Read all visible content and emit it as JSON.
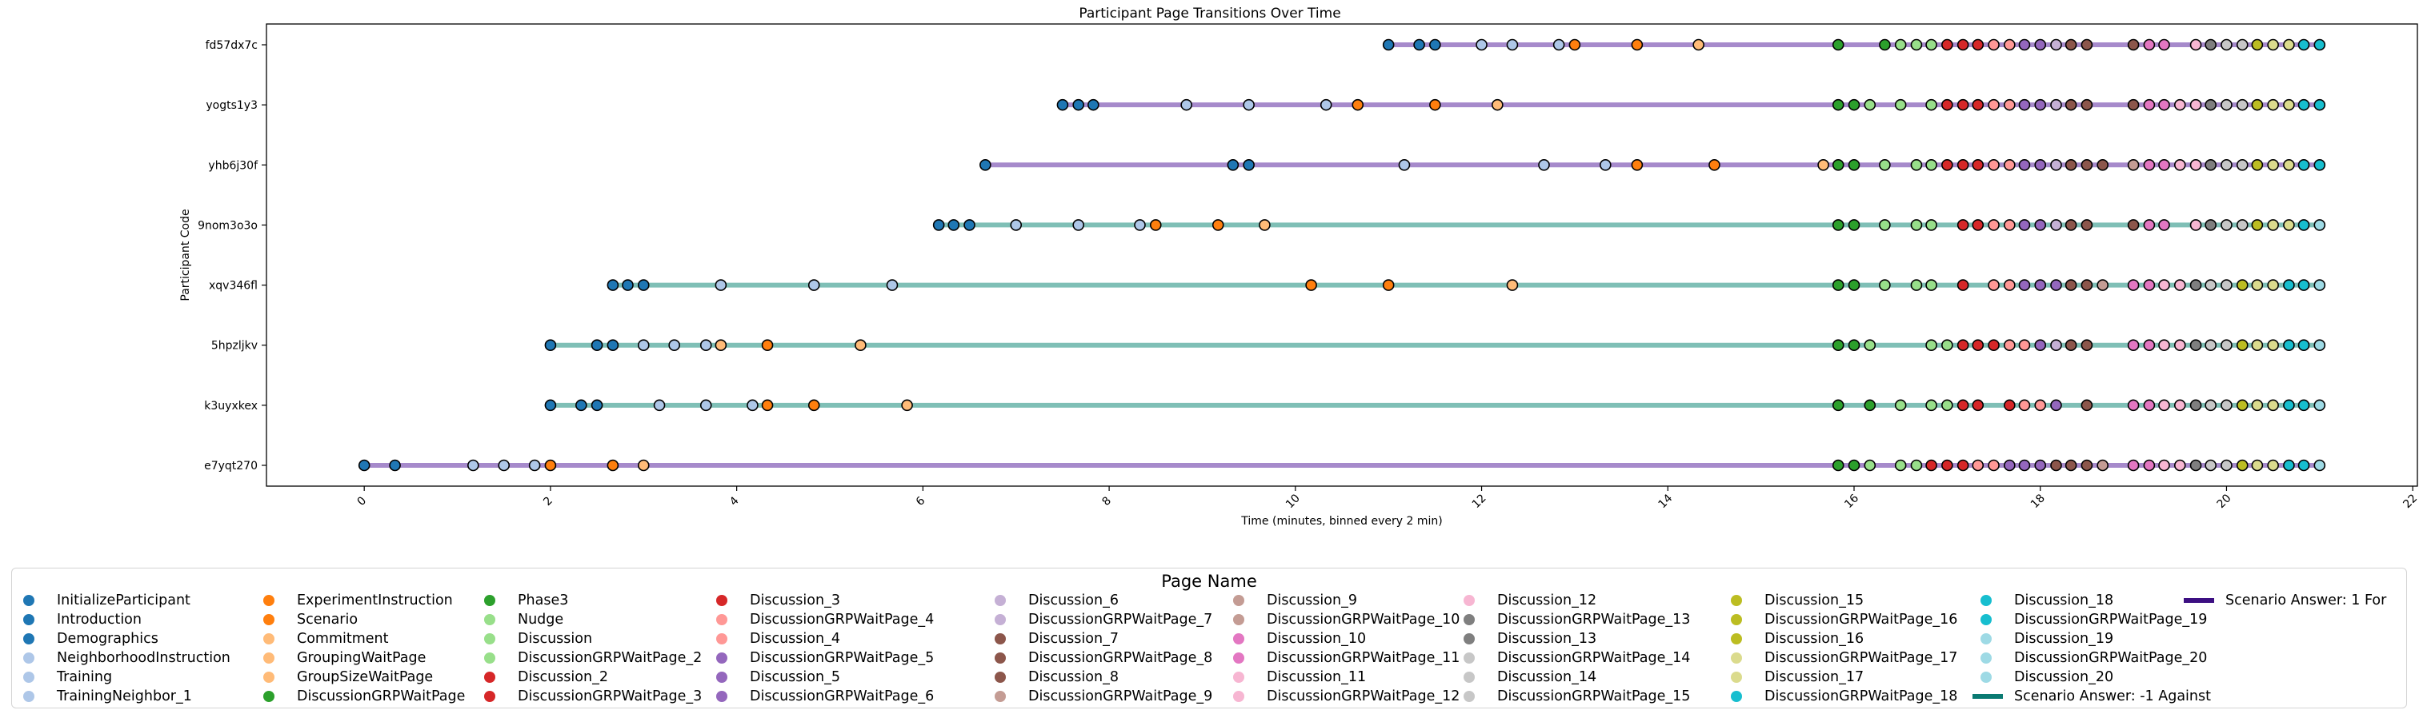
{
  "chart_data": {
    "type": "scatter",
    "title": "Participant Page Transitions Over Time",
    "xlabel": "Time (minutes, binned every 2 min)",
    "ylabel": "Participant Code",
    "xlim": [
      -1.05,
      22.05
    ],
    "xticks": [
      0,
      2,
      4,
      6,
      8,
      10,
      12,
      14,
      16,
      18,
      20,
      22
    ],
    "xtick_labels": [
      "0",
      "2",
      "4",
      "6",
      "8",
      "10",
      "12",
      "14",
      "16",
      "18",
      "20",
      "22"
    ],
    "grid": false,
    "legend_title": "Page Name",
    "legend_placement": "below",
    "pages": [
      {
        "name": "InitializeParticipant",
        "color": "#1f77b4"
      },
      {
        "name": "Introduction",
        "color": "#1f77b4"
      },
      {
        "name": "Demographics",
        "color": "#1f77b4"
      },
      {
        "name": "NeighborhoodInstruction",
        "color": "#aec7e8"
      },
      {
        "name": "Training",
        "color": "#aec7e8"
      },
      {
        "name": "TrainingNeighbor_1",
        "color": "#aec7e8"
      },
      {
        "name": "ExperimentInstruction",
        "color": "#ff7f0e"
      },
      {
        "name": "Scenario",
        "color": "#ff7f0e"
      },
      {
        "name": "Commitment",
        "color": "#ffbb78"
      },
      {
        "name": "GroupingWaitPage",
        "color": "#ffbb78"
      },
      {
        "name": "GroupSizeWaitPage",
        "color": "#ffbb78"
      },
      {
        "name": "DiscussionGRPWaitPage",
        "color": "#2ca02c"
      },
      {
        "name": "Phase3",
        "color": "#2ca02c"
      },
      {
        "name": "Nudge",
        "color": "#98df8a"
      },
      {
        "name": "Discussion",
        "color": "#98df8a"
      },
      {
        "name": "DiscussionGRPWaitPage_2",
        "color": "#98df8a"
      },
      {
        "name": "Discussion_2",
        "color": "#d62728"
      },
      {
        "name": "DiscussionGRPWaitPage_3",
        "color": "#d62728"
      },
      {
        "name": "Discussion_3",
        "color": "#d62728"
      },
      {
        "name": "DiscussionGRPWaitPage_4",
        "color": "#ff9896"
      },
      {
        "name": "Discussion_4",
        "color": "#ff9896"
      },
      {
        "name": "DiscussionGRPWaitPage_5",
        "color": "#9467bd"
      },
      {
        "name": "Discussion_5",
        "color": "#9467bd"
      },
      {
        "name": "DiscussionGRPWaitPage_6",
        "color": "#9467bd"
      },
      {
        "name": "Discussion_6",
        "color": "#c5b0d5"
      },
      {
        "name": "DiscussionGRPWaitPage_7",
        "color": "#c5b0d5"
      },
      {
        "name": "Discussion_7",
        "color": "#8c564b"
      },
      {
        "name": "DiscussionGRPWaitPage_8",
        "color": "#8c564b"
      },
      {
        "name": "Discussion_8",
        "color": "#8c564b"
      },
      {
        "name": "DiscussionGRPWaitPage_9",
        "color": "#c49c94"
      },
      {
        "name": "Discussion_9",
        "color": "#c49c94"
      },
      {
        "name": "DiscussionGRPWaitPage_10",
        "color": "#c49c94"
      },
      {
        "name": "Discussion_10",
        "color": "#e377c2"
      },
      {
        "name": "DiscussionGRPWaitPage_11",
        "color": "#e377c2"
      },
      {
        "name": "Discussion_11",
        "color": "#f7b6d2"
      },
      {
        "name": "DiscussionGRPWaitPage_12",
        "color": "#f7b6d2"
      },
      {
        "name": "Discussion_12",
        "color": "#f7b6d2"
      },
      {
        "name": "DiscussionGRPWaitPage_13",
        "color": "#7f7f7f"
      },
      {
        "name": "Discussion_13",
        "color": "#7f7f7f"
      },
      {
        "name": "DiscussionGRPWaitPage_14",
        "color": "#c7c7c7"
      },
      {
        "name": "Discussion_14",
        "color": "#c7c7c7"
      },
      {
        "name": "DiscussionGRPWaitPage_15",
        "color": "#c7c7c7"
      },
      {
        "name": "Discussion_15",
        "color": "#bcbd22"
      },
      {
        "name": "DiscussionGRPWaitPage_16",
        "color": "#bcbd22"
      },
      {
        "name": "Discussion_16",
        "color": "#bcbd22"
      },
      {
        "name": "DiscussionGRPWaitPage_17",
        "color": "#dbdb8d"
      },
      {
        "name": "Discussion_17",
        "color": "#dbdb8d"
      },
      {
        "name": "DiscussionGRPWaitPage_18",
        "color": "#17becf"
      },
      {
        "name": "Discussion_18",
        "color": "#17becf"
      },
      {
        "name": "DiscussionGRPWaitPage_19",
        "color": "#17becf"
      },
      {
        "name": "Discussion_19",
        "color": "#9edae5"
      },
      {
        "name": "DiscussionGRPWaitPage_20",
        "color": "#9edae5"
      },
      {
        "name": "Discussion_20",
        "color": "#9edae5"
      }
    ],
    "answer_lines": [
      {
        "label": "Scenario Answer: -1 Against",
        "color": "#0a7a72"
      },
      {
        "label": "Scenario Answer: 1 For",
        "color": "#3c0f82"
      }
    ],
    "participants": [
      {
        "code": "e7yqt270",
        "answer": 1,
        "times": [
          0,
          0.33,
          1.17,
          1.5,
          1.83,
          2.0,
          2.67,
          3.0,
          15.83,
          16.0,
          16.17,
          16.5,
          16.67,
          16.83,
          17.0,
          17.17,
          17.33,
          17.5,
          17.67,
          17.83,
          18.0,
          18.17,
          18.33,
          18.5,
          18.67,
          19.0,
          19.17,
          19.33,
          19.5,
          19.67,
          19.83,
          20.0,
          20.17,
          20.33,
          20.5,
          20.67,
          20.83,
          21.0
        ],
        "pages": [
          "InitializeParticipant",
          "Introduction",
          "NeighborhoodInstruction",
          "Training",
          "TrainingNeighbor_1",
          "ExperimentInstruction",
          "Scenario",
          "Commitment",
          "DiscussionGRPWaitPage",
          "Phase3",
          "Nudge",
          "Discussion",
          "DiscussionGRPWaitPage_2",
          "Discussion_2",
          "DiscussionGRPWaitPage_3",
          "Discussion_3",
          "DiscussionGRPWaitPage_4",
          "Discussion_4",
          "DiscussionGRPWaitPage_5",
          "Discussion_5",
          "DiscussionGRPWaitPage_6",
          "Discussion_7",
          "DiscussionGRPWaitPage_8",
          "Discussion_8",
          "Discussion_9",
          "Discussion_10",
          "DiscussionGRPWaitPage_11",
          "Discussion_11",
          "DiscussionGRPWaitPage_12",
          "DiscussionGRPWaitPage_13",
          "Discussion_14",
          "DiscussionGRPWaitPage_15",
          "Discussion_15",
          "DiscussionGRPWaitPage_17",
          "Discussion_17",
          "DiscussionGRPWaitPage_18",
          "Discussion_18",
          "Discussion_20"
        ]
      },
      {
        "code": "k3uyxkex",
        "answer": -1,
        "times": [
          2.0,
          2.33,
          2.5,
          3.17,
          3.67,
          4.17,
          4.33,
          4.83,
          5.83,
          15.83,
          16.17,
          16.5,
          16.83,
          17.0,
          17.17,
          17.33,
          17.67,
          17.83,
          18.0,
          18.17,
          18.5,
          19.0,
          19.17,
          19.33,
          19.5,
          19.67,
          19.83,
          20.0,
          20.17,
          20.33,
          20.5,
          20.67,
          20.83,
          21.0
        ],
        "pages": [
          "InitializeParticipant",
          "Introduction",
          "Demographics",
          "NeighborhoodInstruction",
          "Training",
          "TrainingNeighbor_1",
          "ExperimentInstruction",
          "Scenario",
          "Commitment",
          "DiscussionGRPWaitPage",
          "Phase3",
          "Nudge",
          "Discussion",
          "DiscussionGRPWaitPage_2",
          "Discussion_2",
          "DiscussionGRPWaitPage_3",
          "Discussion_3",
          "DiscussionGRPWaitPage_4",
          "Discussion_4",
          "DiscussionGRPWaitPage_5",
          "Discussion_7",
          "Discussion_10",
          "DiscussionGRPWaitPage_11",
          "Discussion_11",
          "DiscussionGRPWaitPage_12",
          "DiscussionGRPWaitPage_13",
          "Discussion_14",
          "DiscussionGRPWaitPage_15",
          "Discussion_15",
          "DiscussionGRPWaitPage_17",
          "Discussion_17",
          "DiscussionGRPWaitPage_18",
          "Discussion_18",
          "Discussion_20"
        ]
      },
      {
        "code": "5hpzljkv",
        "answer": -1,
        "times": [
          2.0,
          2.5,
          2.67,
          3.0,
          3.33,
          3.67,
          3.83,
          4.33,
          5.33,
          15.83,
          16.0,
          16.17,
          16.83,
          17.0,
          17.17,
          17.33,
          17.5,
          17.67,
          17.83,
          18.0,
          18.17,
          18.33,
          18.5,
          19.0,
          19.17,
          19.33,
          19.5,
          19.67,
          19.83,
          20.0,
          20.17,
          20.33,
          20.5,
          20.67,
          20.83,
          21.0
        ],
        "pages": [
          "InitializeParticipant",
          "Introduction",
          "Demographics",
          "NeighborhoodInstruction",
          "Training",
          "TrainingNeighbor_1",
          "Commitment",
          "ExperimentInstruction",
          "GroupingWaitPage",
          "DiscussionGRPWaitPage",
          "Phase3",
          "Nudge",
          "Discussion",
          "DiscussionGRPWaitPage_2",
          "Discussion_2",
          "DiscussionGRPWaitPage_3",
          "Discussion_3",
          "DiscussionGRPWaitPage_4",
          "Discussion_4",
          "DiscussionGRPWaitPage_5",
          "Discussion_6",
          "Discussion_7",
          "Discussion_8",
          "Discussion_10",
          "DiscussionGRPWaitPage_11",
          "Discussion_11",
          "DiscussionGRPWaitPage_12",
          "DiscussionGRPWaitPage_13",
          "Discussion_14",
          "DiscussionGRPWaitPage_15",
          "Discussion_15",
          "DiscussionGRPWaitPage_17",
          "Discussion_17",
          "DiscussionGRPWaitPage_18",
          "Discussion_18",
          "Discussion_20"
        ]
      },
      {
        "code": "xqv346fl",
        "answer": -1,
        "times": [
          2.67,
          2.83,
          3.0,
          3.83,
          4.83,
          5.67,
          10.17,
          11.0,
          12.33,
          15.83,
          16.0,
          16.33,
          16.67,
          16.83,
          17.17,
          17.5,
          17.67,
          17.83,
          18.0,
          18.17,
          18.33,
          18.5,
          18.67,
          19.0,
          19.17,
          19.33,
          19.5,
          19.67,
          19.83,
          20.0,
          20.17,
          20.33,
          20.5,
          20.67,
          20.83,
          21.0
        ],
        "pages": [
          "InitializeParticipant",
          "Introduction",
          "Demographics",
          "NeighborhoodInstruction",
          "Training",
          "TrainingNeighbor_1",
          "ExperimentInstruction",
          "Scenario",
          "Commitment",
          "DiscussionGRPWaitPage",
          "Phase3",
          "Nudge",
          "Discussion",
          "DiscussionGRPWaitPage_2",
          "Discussion_2",
          "DiscussionGRPWaitPage_4",
          "Discussion_4",
          "DiscussionGRPWaitPage_5",
          "Discussion_5",
          "DiscussionGRPWaitPage_6",
          "Discussion_7",
          "DiscussionGRPWaitPage_8",
          "Discussion_9",
          "Discussion_10",
          "DiscussionGRPWaitPage_11",
          "Discussion_11",
          "DiscussionGRPWaitPage_12",
          "DiscussionGRPWaitPage_13",
          "Discussion_14",
          "DiscussionGRPWaitPage_15",
          "Discussion_15",
          "DiscussionGRPWaitPage_17",
          "Discussion_17",
          "DiscussionGRPWaitPage_18",
          "Discussion_18",
          "Discussion_20"
        ]
      },
      {
        "code": "9nom3o3o",
        "answer": -1,
        "times": [
          6.17,
          6.33,
          6.5,
          7.0,
          7.67,
          8.33,
          8.5,
          9.17,
          9.67,
          15.83,
          16.0,
          16.33,
          16.67,
          16.83,
          17.17,
          17.33,
          17.5,
          17.67,
          17.83,
          18.0,
          18.17,
          18.33,
          18.5,
          19.0,
          19.17,
          19.33,
          19.67,
          19.83,
          20.0,
          20.17,
          20.33,
          20.5,
          20.67,
          20.83,
          21.0
        ],
        "pages": [
          "InitializeParticipant",
          "Introduction",
          "Demographics",
          "NeighborhoodInstruction",
          "Training",
          "TrainingNeighbor_1",
          "ExperimentInstruction",
          "Scenario",
          "Commitment",
          "DiscussionGRPWaitPage",
          "Phase3",
          "Nudge",
          "Discussion",
          "DiscussionGRPWaitPage_2",
          "DiscussionGRPWaitPage_3",
          "Discussion_3",
          "DiscussionGRPWaitPage_4",
          "Discussion_4",
          "DiscussionGRPWaitPage_5",
          "Discussion_5",
          "Discussion_6",
          "Discussion_7",
          "DiscussionGRPWaitPage_8",
          "Discussion_8",
          "Discussion_10",
          "DiscussionGRPWaitPage_11",
          "Discussion_11",
          "DiscussionGRPWaitPage_13",
          "Discussion_14",
          "DiscussionGRPWaitPage_15",
          "Discussion_15",
          "DiscussionGRPWaitPage_17",
          "Discussion_17",
          "DiscussionGRPWaitPage_18",
          "Discussion_20"
        ]
      },
      {
        "code": "yhb6j30f",
        "answer": 1,
        "times": [
          6.67,
          9.33,
          9.5,
          11.17,
          12.67,
          13.33,
          13.67,
          14.5,
          15.67,
          15.83,
          16.0,
          16.33,
          16.67,
          16.83,
          17.0,
          17.17,
          17.33,
          17.5,
          17.67,
          17.83,
          18.0,
          18.17,
          18.33,
          18.5,
          18.67,
          19.0,
          19.17,
          19.33,
          19.5,
          19.67,
          19.83,
          20.0,
          20.17,
          20.33,
          20.5,
          20.67,
          20.83,
          21.0
        ],
        "pages": [
          "InitializeParticipant",
          "Introduction",
          "Demographics",
          "NeighborhoodInstruction",
          "Training",
          "TrainingNeighbor_1",
          "ExperimentInstruction",
          "Scenario",
          "Commitment",
          "DiscussionGRPWaitPage",
          "Phase3",
          "Nudge",
          "Discussion",
          "DiscussionGRPWaitPage_2",
          "Discussion_2",
          "DiscussionGRPWaitPage_3",
          "Discussion_3",
          "DiscussionGRPWaitPage_4",
          "Discussion_4",
          "DiscussionGRPWaitPage_5",
          "Discussion_5",
          "Discussion_6",
          "Discussion_7",
          "DiscussionGRPWaitPage_8",
          "Discussion_8",
          "Discussion_9",
          "Discussion_10",
          "DiscussionGRPWaitPage_11",
          "Discussion_11",
          "DiscussionGRPWaitPage_12",
          "DiscussionGRPWaitPage_13",
          "Discussion_14",
          "DiscussionGRPWaitPage_15",
          "Discussion_15",
          "DiscussionGRPWaitPage_17",
          "Discussion_17",
          "DiscussionGRPWaitPage_18",
          "Discussion_18"
        ]
      },
      {
        "code": "yogts1y3",
        "answer": 1,
        "times": [
          7.5,
          7.67,
          7.83,
          8.83,
          9.5,
          10.33,
          10.67,
          11.5,
          12.17,
          15.83,
          16.0,
          16.17,
          16.5,
          16.83,
          17.0,
          17.17,
          17.33,
          17.5,
          17.67,
          17.83,
          18.0,
          18.17,
          18.33,
          18.5,
          19.0,
          19.17,
          19.33,
          19.5,
          19.67,
          19.83,
          20.0,
          20.17,
          20.33,
          20.5,
          20.67,
          20.83,
          21.0
        ],
        "pages": [
          "InitializeParticipant",
          "Introduction",
          "Demographics",
          "NeighborhoodInstruction",
          "Training",
          "TrainingNeighbor_1",
          "ExperimentInstruction",
          "Scenario",
          "Commitment",
          "DiscussionGRPWaitPage",
          "Phase3",
          "Nudge",
          "Discussion",
          "DiscussionGRPWaitPage_2",
          "Discussion_2",
          "DiscussionGRPWaitPage_3",
          "Discussion_3",
          "DiscussionGRPWaitPage_4",
          "Discussion_4",
          "DiscussionGRPWaitPage_5",
          "Discussion_5",
          "Discussion_6",
          "Discussion_7",
          "DiscussionGRPWaitPage_8",
          "Discussion_8",
          "Discussion_10",
          "DiscussionGRPWaitPage_11",
          "Discussion_11",
          "DiscussionGRPWaitPage_12",
          "DiscussionGRPWaitPage_13",
          "Discussion_14",
          "DiscussionGRPWaitPage_15",
          "Discussion_15",
          "DiscussionGRPWaitPage_17",
          "Discussion_17",
          "DiscussionGRPWaitPage_18",
          "Discussion_18"
        ]
      },
      {
        "code": "fd57dx7c",
        "answer": 1,
        "times": [
          11.0,
          11.33,
          11.5,
          12.0,
          12.33,
          12.83,
          13.0,
          13.67,
          14.33,
          15.83,
          16.33,
          16.5,
          16.67,
          16.83,
          17.0,
          17.17,
          17.33,
          17.5,
          17.67,
          17.83,
          18.0,
          18.17,
          18.33,
          18.5,
          19.0,
          19.17,
          19.33,
          19.67,
          19.83,
          20.0,
          20.17,
          20.33,
          20.5,
          20.67,
          20.83,
          21.0
        ],
        "pages": [
          "InitializeParticipant",
          "Introduction",
          "Demographics",
          "NeighborhoodInstruction",
          "Training",
          "TrainingNeighbor_1",
          "ExperimentInstruction",
          "Scenario",
          "Commitment",
          "DiscussionGRPWaitPage",
          "Phase3",
          "Nudge",
          "Discussion",
          "DiscussionGRPWaitPage_2",
          "Discussion_2",
          "DiscussionGRPWaitPage_3",
          "Discussion_3",
          "DiscussionGRPWaitPage_4",
          "Discussion_4",
          "DiscussionGRPWaitPage_5",
          "Discussion_5",
          "Discussion_6",
          "Discussion_7",
          "DiscussionGRPWaitPage_8",
          "Discussion_8",
          "Discussion_10",
          "DiscussionGRPWaitPage_11",
          "Discussion_11",
          "DiscussionGRPWaitPage_13",
          "Discussion_14",
          "DiscussionGRPWaitPage_15",
          "Discussion_15",
          "DiscussionGRPWaitPage_17",
          "Discussion_17",
          "DiscussionGRPWaitPage_18",
          "Discussion_18"
        ]
      }
    ]
  }
}
